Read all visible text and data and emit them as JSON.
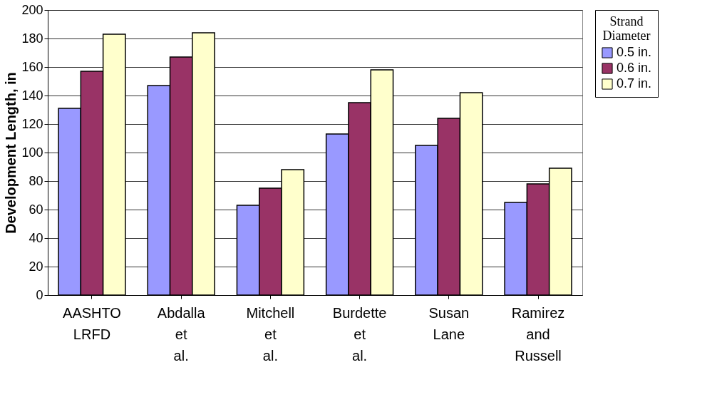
{
  "chart_data": {
    "type": "bar",
    "ylabel": "Development Length, in",
    "legend_title": "Strand Diameter",
    "categories": [
      "AASHTO LRFD",
      "Abdalla et al.",
      "Mitchell et al.",
      "Burdette et al.",
      "Susan Lane",
      "Ramirez and Russell"
    ],
    "series": [
      {
        "name": "0.5 in.",
        "color": "#9999ff",
        "values": [
          131,
          147,
          63,
          113,
          105,
          65
        ]
      },
      {
        "name": "0.6 in.",
        "color": "#993366",
        "values": [
          157,
          167,
          75,
          135,
          124,
          78
        ]
      },
      {
        "name": "0.7 in.",
        "color": "#ffffcc",
        "values": [
          183,
          184,
          88,
          158,
          142,
          89
        ]
      }
    ],
    "ylim": [
      0,
      200
    ],
    "yticks": [
      0,
      20,
      40,
      60,
      80,
      100,
      120,
      140,
      160,
      180,
      200
    ],
    "grid": "y",
    "legend": "right"
  }
}
